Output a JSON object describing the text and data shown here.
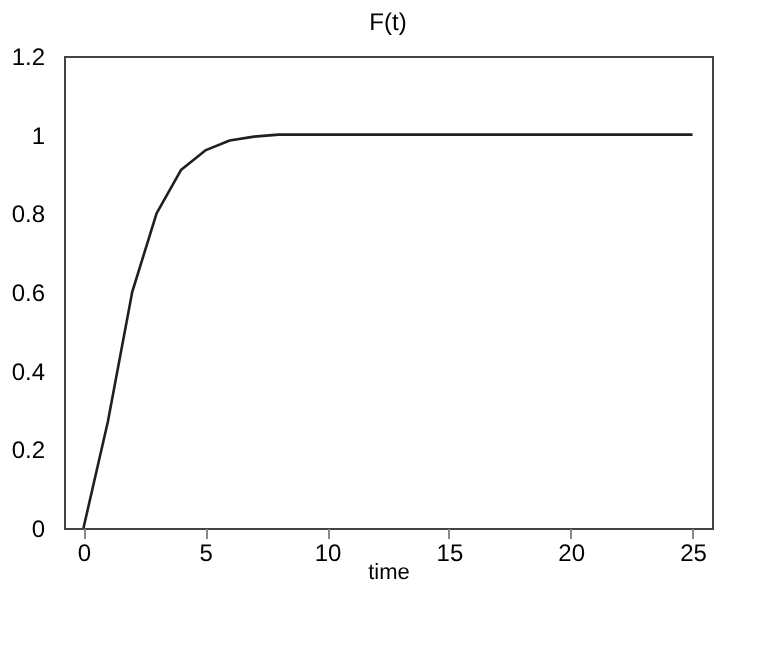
{
  "chart_data": {
    "type": "line",
    "title": "F(t)",
    "xlabel": "time",
    "x": [
      0,
      1,
      2,
      3,
      4,
      5,
      6,
      7,
      8,
      10,
      15,
      20,
      25
    ],
    "series": [
      {
        "color": "#1f1f1f",
        "values": [
          0,
          0.27,
          0.6,
          0.8,
          0.91,
          0.96,
          0.985,
          0.995,
          1,
          1,
          1,
          1,
          1
        ]
      }
    ],
    "xlim": [
      -0.8,
      25.8
    ],
    "xticks": [
      0,
      5,
      10,
      15,
      20,
      25
    ],
    "ylim": [
      0,
      1.2
    ],
    "yticks": [
      0,
      0.2,
      0.4,
      0.6,
      0.8,
      1,
      1.2
    ],
    "grid": false,
    "legend": false,
    "marker": "none",
    "line_style": "solid"
  }
}
